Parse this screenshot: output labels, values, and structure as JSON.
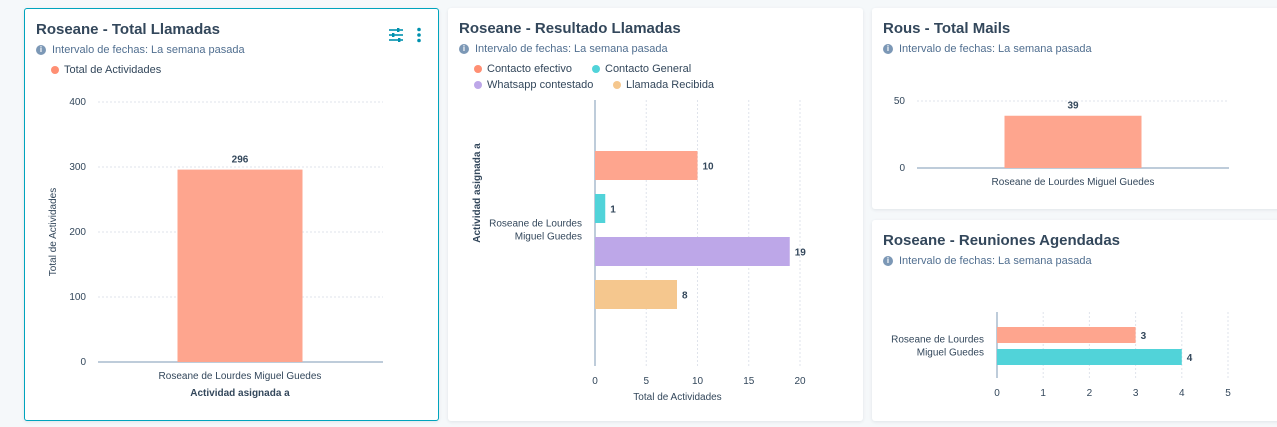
{
  "cards": [
    {
      "title": "Roseane - Total Llamadas",
      "date_range": "Intervalo de fechas: La semana pasada",
      "legend": [
        {
          "label": "Total de Actividades",
          "color": "#ff8f73"
        }
      ]
    },
    {
      "title": "Roseane - Resultado Llamadas",
      "date_range": "Intervalo de fechas: La semana pasada",
      "legend": [
        {
          "label": "Contacto efectivo",
          "color": "#ff8f73"
        },
        {
          "label": "Contacto General",
          "color": "#51d3d9"
        },
        {
          "label": "Whatsapp contestado",
          "color": "#bda7e8"
        },
        {
          "label": "Llamada Recibida",
          "color": "#f5c78e"
        }
      ]
    },
    {
      "title": "Rous - Total Mails",
      "date_range": "Intervalo de fechas: La semana pasada"
    },
    {
      "title": "Roseane - Reuniones Agendadas",
      "date_range": "Intervalo de fechas: La semana pasada"
    }
  ],
  "icons": {
    "info": "info-icon",
    "filter": "sliders-icon",
    "more": "more-vertical-icon"
  },
  "chart_data": [
    {
      "type": "bar",
      "orientation": "vertical",
      "categories": [
        "Roseane de Lourdes Miguel Guedes"
      ],
      "series": [
        {
          "name": "Total de Actividades",
          "values": [
            296
          ],
          "color": "#fea58e"
        }
      ],
      "xlabel": "Actividad asignada a",
      "ylabel": "Total de Actividades",
      "yticks": [
        "0",
        "100",
        "200",
        "300",
        "400"
      ],
      "ylim": [
        0,
        400
      ],
      "grid": true
    },
    {
      "type": "bar",
      "orientation": "horizontal",
      "categories": [
        "Roseane de Lourdes Miguel Guedes"
      ],
      "series": [
        {
          "name": "Contacto efectivo",
          "values": [
            10
          ],
          "color": "#fea58e"
        },
        {
          "name": "Contacto General",
          "values": [
            1
          ],
          "color": "#51d3d9"
        },
        {
          "name": "Whatsapp contestado",
          "values": [
            19
          ],
          "color": "#bda7e8"
        },
        {
          "name": "Llamada Recibida",
          "values": [
            8
          ],
          "color": "#f5c78e"
        }
      ],
      "xlabel": "Total de Actividades",
      "ylabel": "Actividad asignada a",
      "xticks": [
        "0",
        "5",
        "10",
        "15",
        "20"
      ],
      "xlim": [
        0,
        20
      ],
      "grid": true
    },
    {
      "type": "bar",
      "orientation": "vertical",
      "categories": [
        "Roseane de Lourdes Miguel Guedes"
      ],
      "series": [
        {
          "values": [
            39
          ],
          "color": "#fea58e"
        }
      ],
      "yticks": [
        "0",
        "50"
      ],
      "ylim": [
        0,
        50
      ],
      "grid": true
    },
    {
      "type": "bar",
      "orientation": "horizontal",
      "categories": [
        "Roseane de Lourdes Miguel Guedes"
      ],
      "series": [
        {
          "values": [
            3
          ],
          "color": "#fea58e"
        },
        {
          "values": [
            4
          ],
          "color": "#51d3d9"
        }
      ],
      "xticks": [
        "0",
        "1",
        "2",
        "3",
        "4",
        "5"
      ],
      "xlim": [
        0,
        5
      ],
      "grid": true
    }
  ]
}
